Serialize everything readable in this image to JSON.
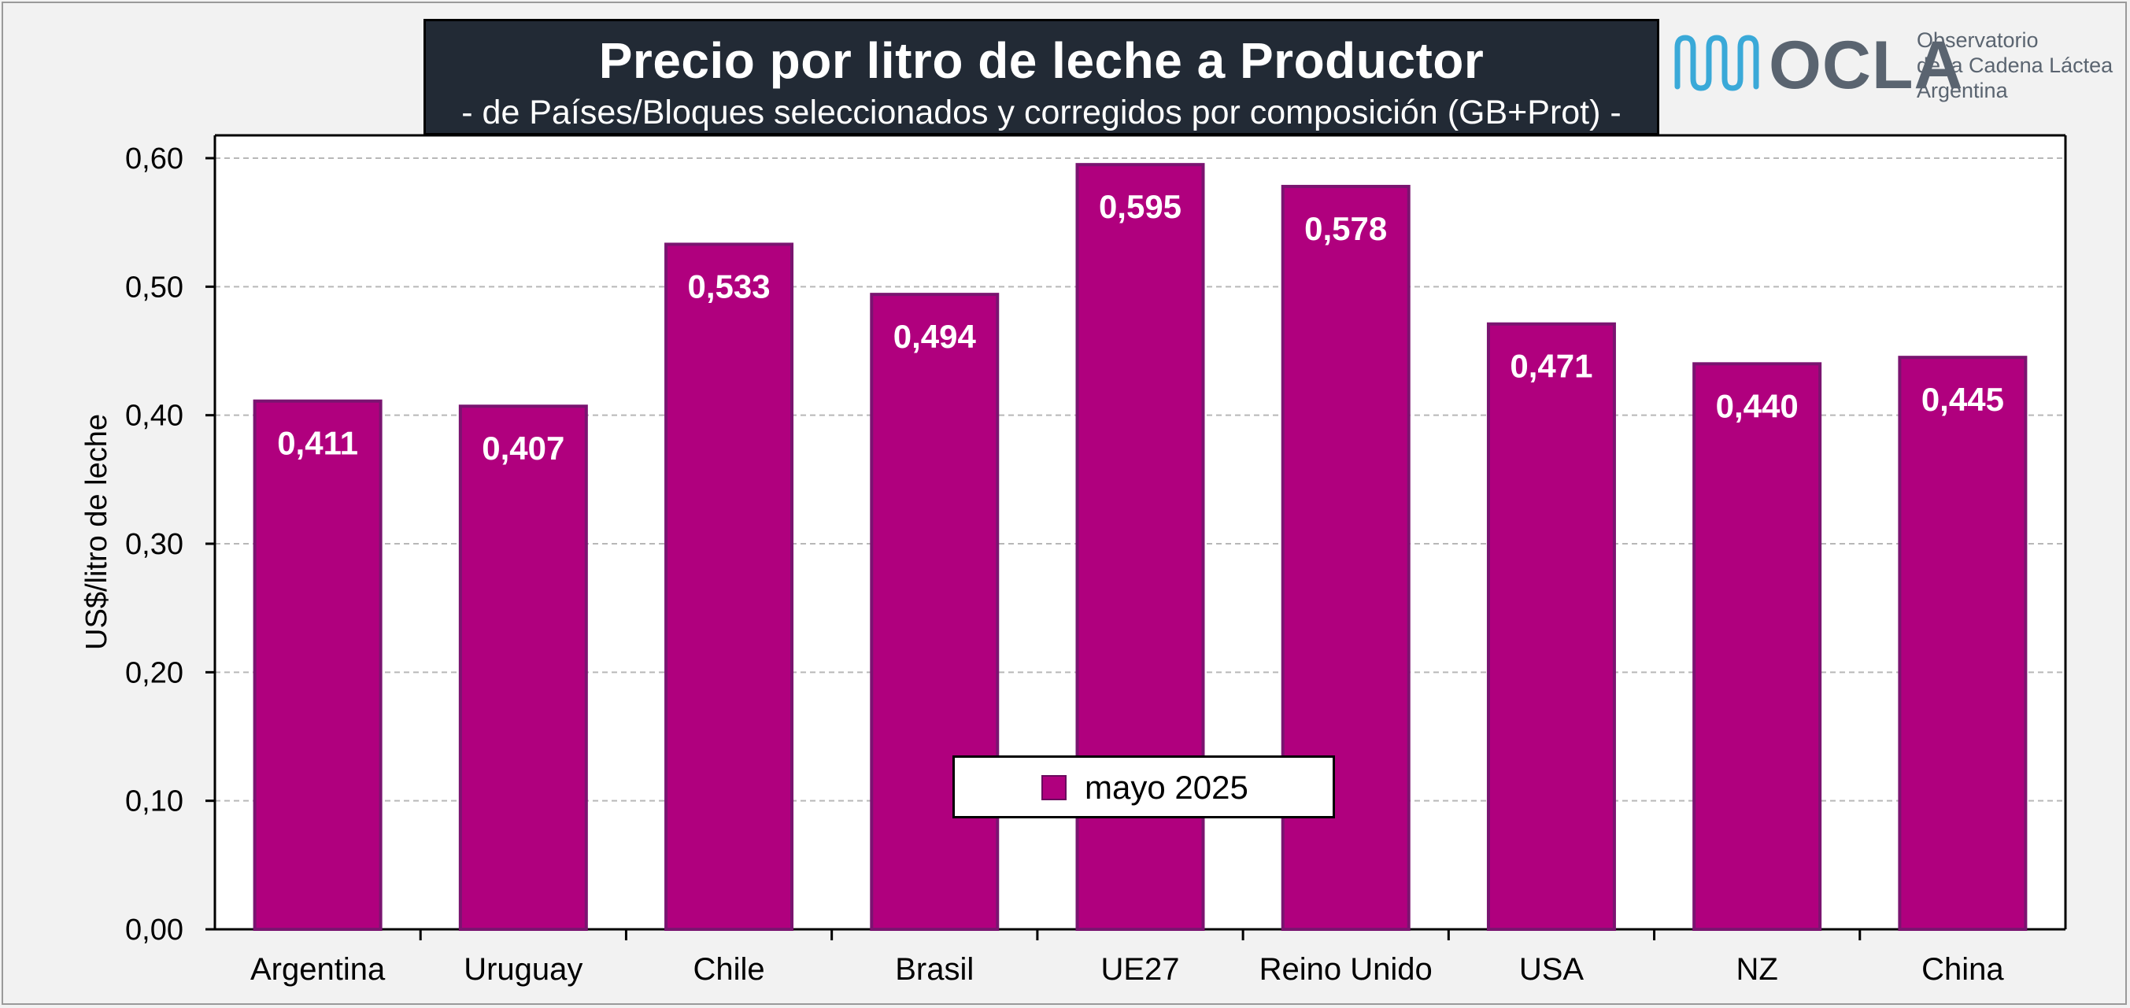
{
  "header": {
    "title": "Precio por litro de leche a Productor",
    "subtitle": "-  de Países/Bloques seleccionados y corregidos por composición (GB+Prot) -"
  },
  "logo": {
    "wordmark": "OCLA",
    "line1": "Observatorio",
    "line2": "de la Cadena Láctea",
    "line3": "Argentina",
    "icon": "wave-bars-icon"
  },
  "colors": {
    "bar": "#b0007e",
    "bar_border": "#7a1470",
    "title_bg": "#222a35",
    "logo_accent": "#3aa9d8"
  },
  "chart_data": {
    "type": "bar",
    "categories": [
      "Argentina",
      "Uruguay",
      "Chile",
      "Brasil",
      "UE27",
      "Reino Unido",
      "USA",
      "NZ",
      "China"
    ],
    "series": [
      {
        "name": "mayo 2025",
        "values": [
          0.411,
          0.407,
          0.533,
          0.494,
          0.595,
          0.578,
          0.471,
          0.44,
          0.445
        ],
        "labels": [
          "0,411",
          "0,407",
          "0,533",
          "0,494",
          "0,595",
          "0,578",
          "0,471",
          "0,440",
          "0,445"
        ]
      }
    ],
    "ylabel": "US$/litro de leche",
    "ylim": [
      0,
      0.6
    ],
    "yticks": [
      0,
      0.1,
      0.2,
      0.3,
      0.4,
      0.5,
      0.6
    ],
    "ytick_labels": [
      "0,00",
      "0,10",
      "0,20",
      "0,30",
      "0,40",
      "0,50",
      "0,60"
    ],
    "grid": true,
    "legend": "bottom-center"
  }
}
